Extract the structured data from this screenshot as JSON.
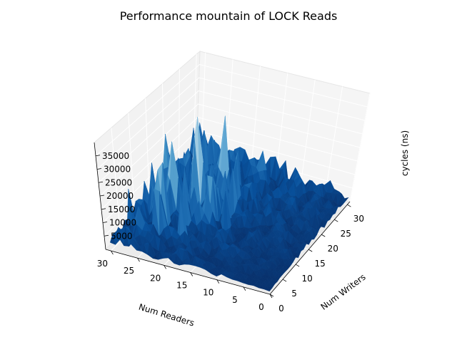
{
  "chart_data": {
    "type": "surface3d",
    "title": "Performance mountain of LOCK Reads",
    "xlabel": "Num Readers",
    "ylabel": "Num Writers",
    "zlabel": "cycles (ns)",
    "xlim": [
      0,
      31
    ],
    "ylim": [
      0,
      31
    ],
    "zlim": [
      0,
      40000
    ],
    "x_ticks": [
      0,
      5,
      10,
      15,
      20,
      25,
      30
    ],
    "y_ticks": [
      0,
      5,
      10,
      15,
      20,
      25,
      30
    ],
    "z_ticks": [
      5000,
      10000,
      15000,
      20000,
      25000,
      30000,
      35000
    ],
    "colormap": "Blues_r",
    "surface": {
      "description": "cycles over readers × writers grid",
      "baseline": 1500,
      "peak": 38000,
      "peak_location": {
        "readers": 22,
        "writers": 16
      },
      "notable_peaks": [
        {
          "readers": 22,
          "writers": 16,
          "cycles": 38000
        },
        {
          "readers": 25,
          "writers": 13,
          "cycles": 30000
        },
        {
          "readers": 24,
          "writers": 19,
          "cycles": 26000
        },
        {
          "readers": 26,
          "writers": 10,
          "cycles": 22000
        },
        {
          "readers": 20,
          "writers": 21,
          "cycles": 24000
        },
        {
          "readers": 22,
          "writers": 24,
          "cycles": 18000
        },
        {
          "readers": 16,
          "writers": 27,
          "cycles": 15000
        },
        {
          "readers": 27,
          "writers": 5,
          "cycles": 13000
        },
        {
          "readers": 18,
          "writers": 12,
          "cycles": 16000
        }
      ]
    }
  }
}
